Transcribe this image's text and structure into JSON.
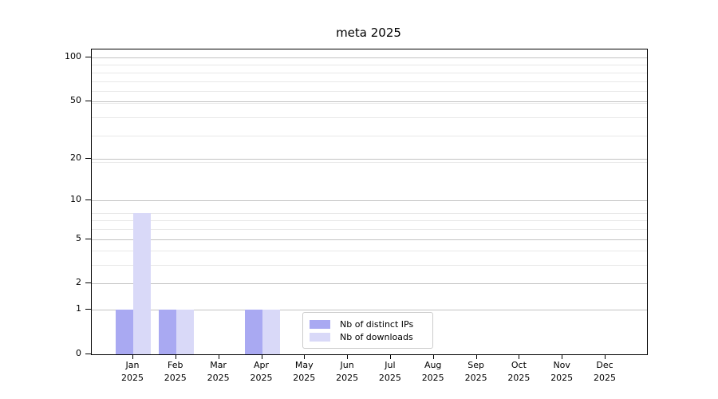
{
  "chart_data": {
    "type": "bar",
    "title": "meta 2025",
    "x_year": "2025",
    "categories": [
      "Jan",
      "Feb",
      "Mar",
      "Apr",
      "May",
      "Jun",
      "Jul",
      "Aug",
      "Sep",
      "Oct",
      "Nov",
      "Dec"
    ],
    "series": [
      {
        "name": "Nb of distinct IPs",
        "color": "#a9a9f2",
        "values": [
          1,
          1,
          0,
          1,
          0,
          0,
          0,
          0,
          0,
          0,
          0,
          0
        ]
      },
      {
        "name": "Nb of downloads",
        "color": "#d9d9f8",
        "values": [
          8,
          1,
          0,
          1,
          0,
          0,
          0,
          0,
          0,
          0,
          0,
          0
        ]
      }
    ],
    "yticks": [
      0,
      1,
      2,
      5,
      10,
      20,
      50,
      100
    ],
    "yscale": "log1p",
    "ylim": [
      0,
      113
    ],
    "xlabel": "",
    "ylabel": "",
    "grid": true,
    "legend_position": "bottom-center",
    "colors": {
      "axis": "#000000",
      "grid_major": "#c3c3c3",
      "grid_minor": "#e8e8e8",
      "legend_border": "#cccccc",
      "background": "#ffffff"
    }
  }
}
